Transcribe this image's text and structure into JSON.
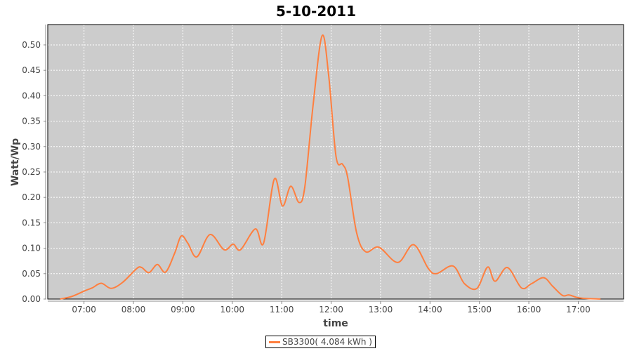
{
  "chart_data": {
    "type": "line",
    "title": "5-10-2011",
    "xlabel": "time",
    "ylabel": "Watt/Wp",
    "ylim": [
      0,
      0.54
    ],
    "xlim": [
      "06:16",
      "17:55"
    ],
    "grid": true,
    "legend_position": "bottom",
    "x_ticks": [
      "07:00",
      "08:00",
      "09:00",
      "10:00",
      "11:00",
      "12:00",
      "13:00",
      "14:00",
      "15:00",
      "16:00",
      "17:00"
    ],
    "y_ticks": [
      "0.00",
      "0.05",
      "0.10",
      "0.15",
      "0.20",
      "0.25",
      "0.30",
      "0.35",
      "0.40",
      "0.45",
      "0.50"
    ],
    "series": [
      {
        "name": "SB3300( 4.084 kWh )",
        "color": "#ff7f3f",
        "x": [
          "06:31",
          "06:45",
          "07:02",
          "07:10",
          "07:21",
          "07:33",
          "07:47",
          "08:04",
          "08:10",
          "08:19",
          "08:29",
          "08:39",
          "08:50",
          "08:58",
          "09:06",
          "09:17",
          "09:33",
          "09:50",
          "10:01",
          "10:10",
          "10:28",
          "10:38",
          "10:51",
          "11:01",
          "11:11",
          "11:21",
          "11:28",
          "11:38",
          "11:49",
          "11:57",
          "12:06",
          "12:14",
          "12:20",
          "12:31",
          "12:42",
          "12:58",
          "13:21",
          "13:40",
          "13:58",
          "14:08",
          "14:28",
          "14:42",
          "14:57",
          "15:10",
          "15:19",
          "15:34",
          "15:51",
          "16:03",
          "16:18",
          "16:29",
          "16:41",
          "16:49",
          "17:02",
          "17:27"
        ],
        "y": [
          0,
          0.005,
          0.017,
          0.022,
          0.031,
          0.021,
          0.033,
          0.06,
          0.062,
          0.052,
          0.068,
          0.053,
          0.09,
          0.124,
          0.11,
          0.083,
          0.127,
          0.097,
          0.108,
          0.097,
          0.138,
          0.11,
          0.236,
          0.183,
          0.222,
          0.19,
          0.22,
          0.38,
          0.518,
          0.44,
          0.28,
          0.265,
          0.24,
          0.13,
          0.093,
          0.102,
          0.072,
          0.107,
          0.06,
          0.05,
          0.065,
          0.03,
          0.021,
          0.063,
          0.035,
          0.062,
          0.022,
          0.03,
          0.042,
          0.025,
          0.007,
          0.008,
          0.002,
          0
        ]
      }
    ]
  },
  "plot_background": "#cccccc"
}
